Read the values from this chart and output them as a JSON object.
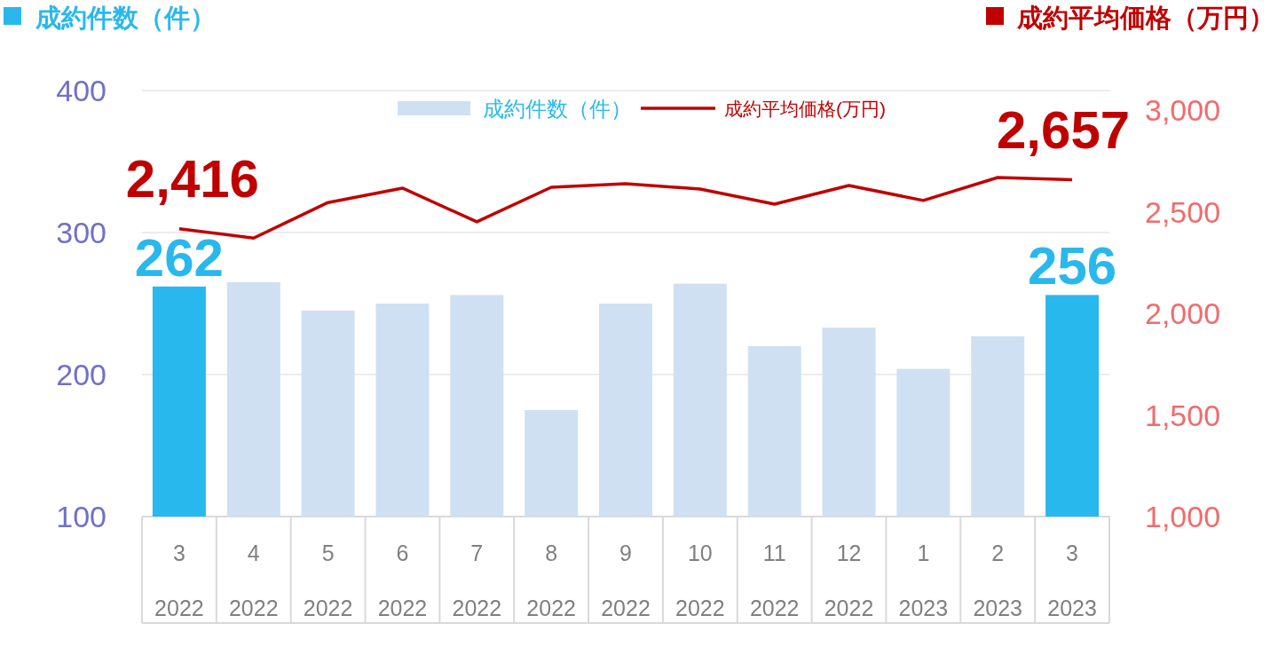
{
  "chart_data": {
    "type": "bar",
    "ylabel": "成約件数（件）",
    "y2label": "成約平均価格（万円）",
    "categories": [
      "3 2022",
      "4 2022",
      "5 2022",
      "6 2022",
      "7 2022",
      "8 2022",
      "9 2022",
      "10 2022",
      "11 2022",
      "12 2022",
      "1 2023",
      "2 2023",
      "3 2023"
    ],
    "series": [
      {
        "name": "成約件数（件）",
        "color": "#cfe0f3",
        "colors": [
          "#29b8ee",
          "#cfe0f3",
          "#cfe0f3",
          "#cfe0f3",
          "#cfe0f3",
          "#cfe0f3",
          "#cfe0f3",
          "#cfe0f3",
          "#cfe0f3",
          "#cfe0f3",
          "#cfe0f3",
          "#cfe0f3",
          "#29b8ee"
        ],
        "values": [
          262,
          265,
          245,
          250,
          256,
          175,
          250,
          264,
          220,
          233,
          204,
          227,
          256
        ],
        "value_labels": [
          "262",
          null,
          null,
          null,
          null,
          null,
          null,
          null,
          null,
          null,
          null,
          null,
          "256"
        ]
      },
      {
        "name": "成約平均価格(万円)",
        "type": "line",
        "axis": "y2",
        "color": "#c00000",
        "values": [
          2416,
          2370,
          2545,
          2616,
          2450,
          2620,
          2638,
          2611,
          2537,
          2629,
          2555,
          2668,
          2657
        ],
        "value_labels": [
          "2,416",
          null,
          null,
          null,
          null,
          null,
          null,
          null,
          null,
          null,
          null,
          null,
          "2,657"
        ]
      }
    ],
    "ylim": [
      100,
      400
    ],
    "yticks": [
      100,
      200,
      300,
      400
    ],
    "y2lim": [
      1000,
      3000
    ],
    "y2ticks": [
      {
        "value": 1000,
        "label": "1,000"
      },
      {
        "value": 1500,
        "label": "1,500"
      },
      {
        "value": 2000,
        "label": "2,000"
      },
      {
        "value": 2500,
        "label": "2,500"
      },
      {
        "value": 3000,
        "label": "3,000"
      }
    ],
    "grid": "y",
    "legend": "top"
  }
}
